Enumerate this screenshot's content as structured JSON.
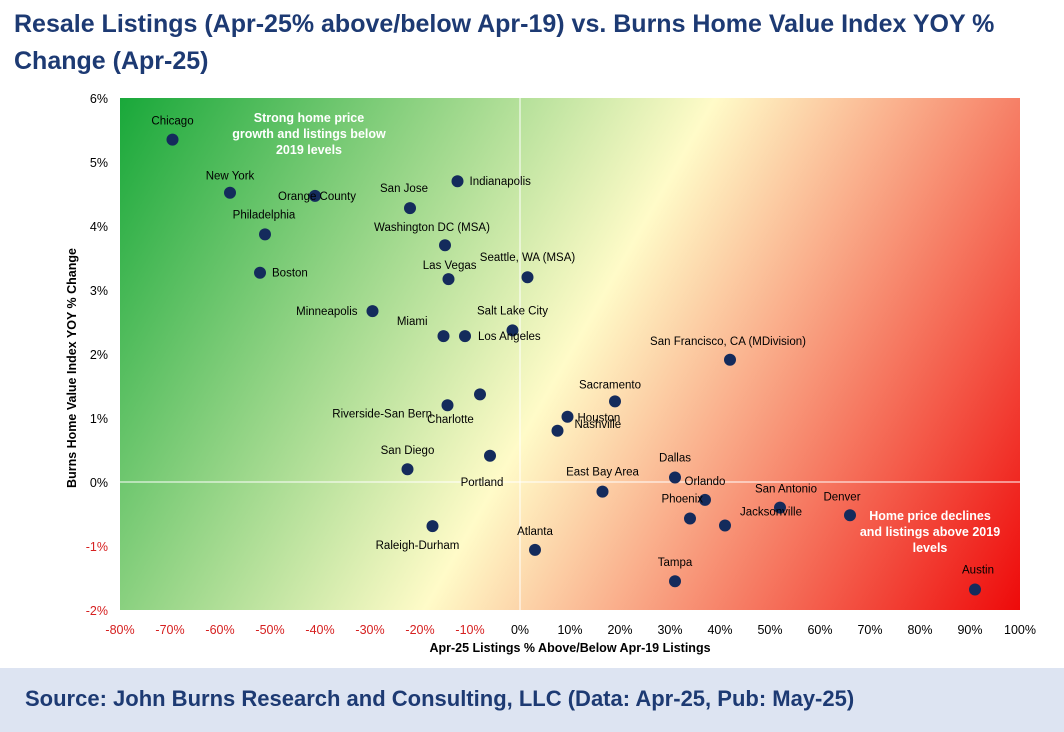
{
  "title": "Resale Listings (Apr-25% above/below Apr-19) vs. Burns Home Value Index YOY % Change (Apr-25)",
  "footer": {
    "source": "Source: John Burns Research and Consulting, LLC (Data: Apr-25, Pub: May-25)"
  },
  "colors": {
    "title": "#1d3a73",
    "point": "#142b5c",
    "negative_tick": "#d62020",
    "green": "#19a83a",
    "yellow": "#fffbc8",
    "red": "#ee0a0a"
  },
  "chart_data": {
    "type": "scatter",
    "title": "Resale Listings (Apr-25% above/below Apr-19) vs. Burns Home Value Index YOY % Change (Apr-25)",
    "xlabel": "Apr-25 Listings % Above/Below Apr-19 Listings",
    "ylabel": "Burns Home Value Index YOY % Change",
    "xlim": [
      -80,
      100
    ],
    "ylim": [
      -2,
      6
    ],
    "x_ticks": [
      "-80%",
      "-70%",
      "-60%",
      "-50%",
      "-40%",
      "-30%",
      "-20%",
      "-10%",
      "0%",
      "10%",
      "20%",
      "30%",
      "40%",
      "50%",
      "60%",
      "70%",
      "80%",
      "90%",
      "100%"
    ],
    "y_ticks": [
      "-2%",
      "-1%",
      "0%",
      "1%",
      "2%",
      "3%",
      "4%",
      "5%",
      "6%"
    ],
    "grid": false,
    "annotations": [
      "Strong home price growth and listings below 2019 levels",
      "Home price declines and listings above 2019 levels"
    ],
    "points": [
      {
        "label": "Chicago",
        "x": -69.5,
        "y": 5.35
      },
      {
        "label": "New York",
        "x": -58,
        "y": 4.52
      },
      {
        "label": "Orange County",
        "x": -41,
        "y": 4.47
      },
      {
        "label": "Indianapolis",
        "x": -12.5,
        "y": 4.7
      },
      {
        "label": "San Jose",
        "x": -22,
        "y": 4.28
      },
      {
        "label": "Philadelphia",
        "x": -51,
        "y": 3.87
      },
      {
        "label": "Washington DC (MSA)",
        "x": -15,
        "y": 3.7
      },
      {
        "label": "Boston",
        "x": -52,
        "y": 3.27
      },
      {
        "label": "Las Vegas",
        "x": -14.3,
        "y": 3.17
      },
      {
        "label": "Seattle, WA (MSA)",
        "x": 1.5,
        "y": 3.2
      },
      {
        "label": "Minneapolis",
        "x": -29.5,
        "y": 2.67
      },
      {
        "label": "Salt Lake City",
        "x": -1.5,
        "y": 2.37
      },
      {
        "label": "Miami",
        "x": -15.3,
        "y": 2.28
      },
      {
        "label": "Los Angeles",
        "x": -11,
        "y": 2.28
      },
      {
        "label": "San Francisco, CA (MDivision)",
        "x": 42,
        "y": 1.91
      },
      {
        "label": "Sacramento",
        "x": 19,
        "y": 1.26
      },
      {
        "label": "Riverside-San Bern",
        "x": -8,
        "y": 1.37
      },
      {
        "label": "Charlotte",
        "x": -14.5,
        "y": 1.2
      },
      {
        "label": "Houston",
        "x": 9.5,
        "y": 1.02
      },
      {
        "label": "Nashville",
        "x": 7.5,
        "y": 0.8
      },
      {
        "label": "San Diego",
        "x": -22.5,
        "y": 0.2
      },
      {
        "label": "Portland",
        "x": -6,
        "y": 0.41
      },
      {
        "label": "Dallas",
        "x": 31,
        "y": 0.07
      },
      {
        "label": "East Bay Area",
        "x": 16.5,
        "y": -0.15
      },
      {
        "label": "Orlando",
        "x": 37,
        "y": -0.28
      },
      {
        "label": "Phoenix",
        "x": 34,
        "y": -0.57
      },
      {
        "label": "San Antonio",
        "x": 52,
        "y": -0.4
      },
      {
        "label": "Jacksonville",
        "x": 41,
        "y": -0.68
      },
      {
        "label": "Denver",
        "x": 66,
        "y": -0.52
      },
      {
        "label": "Raleigh-Durham",
        "x": -17.5,
        "y": -0.69
      },
      {
        "label": "Atlanta",
        "x": 3,
        "y": -1.06
      },
      {
        "label": "Tampa",
        "x": 31,
        "y": -1.55
      },
      {
        "label": "Austin",
        "x": 91,
        "y": -1.68
      }
    ]
  }
}
